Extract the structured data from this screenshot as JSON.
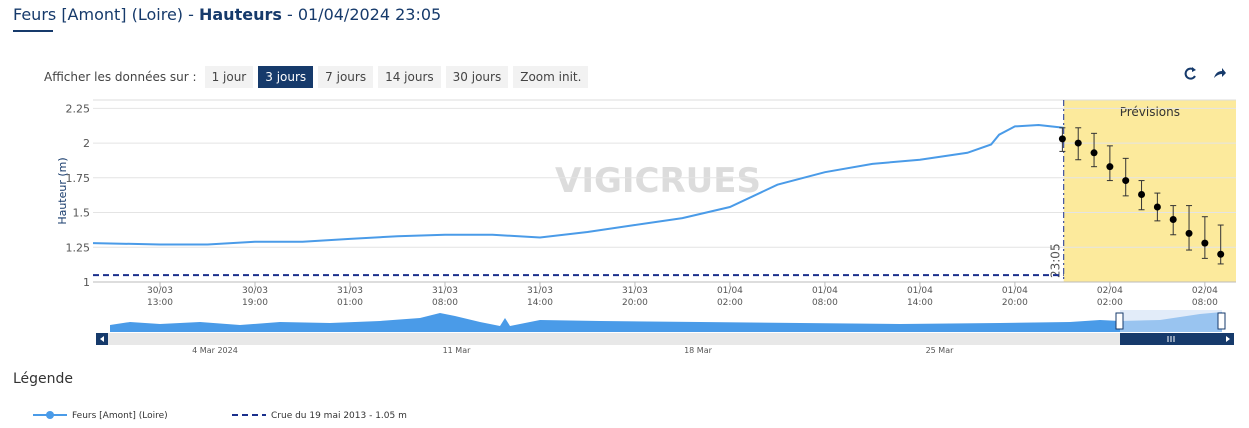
{
  "header": {
    "title_parts": [
      "Feurs [Amont] (Loire) - ",
      "Hauteurs",
      " - 01/04/2024 23:05"
    ]
  },
  "controls": {
    "label": "Afficher les données sur :",
    "buttons": [
      "1 jour",
      "3 jours",
      "7 jours",
      "14 jours",
      "30 jours",
      "Zoom init."
    ],
    "active": 1
  },
  "chart_data": {
    "type": "line",
    "y_label": "Hauteur (m)",
    "watermark": "VIGICRUES",
    "xlim": [
      "30/03 08:46",
      "02/04 09:58"
    ],
    "ylim": [
      1,
      2.31
    ],
    "yticks": [
      1,
      1.25,
      1.5,
      1.75,
      2,
      2.25
    ],
    "xticks": [
      "30/03 13:00",
      "30/03 19:00",
      "31/03 01:00",
      "31/03 08:00",
      "31/03 14:00",
      "31/03 20:00",
      "01/04 02:00",
      "01/04 08:00",
      "01/04 14:00",
      "01/04 20:00",
      "02/04 02:00",
      "02/04 08:00"
    ],
    "grid": true,
    "series": [
      {
        "name": "Feurs [Amont] (Loire)",
        "color": "#4a9be8",
        "dashed": false,
        "x": [
          "30/03 08:46",
          "30/03 13:00",
          "30/03 16:00",
          "30/03 19:00",
          "30/03 22:00",
          "31/03 01:00",
          "31/03 05:00",
          "31/03 08:00",
          "31/03 11:00",
          "31/03 14:00",
          "31/03 17:00",
          "31/03 20:00",
          "31/03 23:00",
          "01/04 02:00",
          "01/04 05:00",
          "01/04 08:00",
          "01/04 11:00",
          "01/04 14:00",
          "01/04 17:00",
          "01/04 18:30",
          "01/04 19:00",
          "01/04 20:00",
          "01/04 21:30",
          "01/04 23:05"
        ],
        "values": [
          1.28,
          1.27,
          1.27,
          1.29,
          1.29,
          1.31,
          1.33,
          1.34,
          1.34,
          1.32,
          1.36,
          1.41,
          1.46,
          1.54,
          1.7,
          1.79,
          1.85,
          1.88,
          1.93,
          1.99,
          2.06,
          2.12,
          2.13,
          2.11
        ]
      },
      {
        "name": "Crue du 19 mai 2013 - 1.05 m",
        "color": "#1a2f8c",
        "dashed": true,
        "x": [
          "30/03 08:46",
          "01/04 23:05"
        ],
        "values": [
          1.05,
          1.05
        ]
      }
    ],
    "forecast": {
      "label": "Prévisions",
      "band_color": "#fcea9c",
      "color": "#000000",
      "x": [
        "01/04 23:00",
        "02/04 00:00",
        "02/04 01:00",
        "02/04 02:00",
        "02/04 03:00",
        "02/04 04:00",
        "02/04 05:00",
        "02/04 06:00",
        "02/04 07:00",
        "02/04 08:00",
        "02/04 09:00"
      ],
      "values": [
        2.03,
        2.0,
        1.93,
        1.83,
        1.73,
        1.63,
        1.54,
        1.45,
        1.35,
        1.28,
        1.2
      ],
      "low": [
        1.94,
        1.88,
        1.83,
        1.73,
        1.62,
        1.52,
        1.44,
        1.34,
        1.23,
        1.17,
        1.13
      ],
      "high": [
        2.11,
        2.11,
        2.07,
        1.98,
        1.89,
        1.73,
        1.64,
        1.55,
        1.55,
        1.47,
        1.41
      ]
    },
    "now_line": {
      "x": "01/04 23:05",
      "label": "23:05",
      "color": "#1a2f8c"
    }
  },
  "navigator": {
    "labels": [
      "4 Mar 2024",
      "11 Mar",
      "18 Mar",
      "25 Mar"
    ]
  },
  "legend_title": "Légende"
}
